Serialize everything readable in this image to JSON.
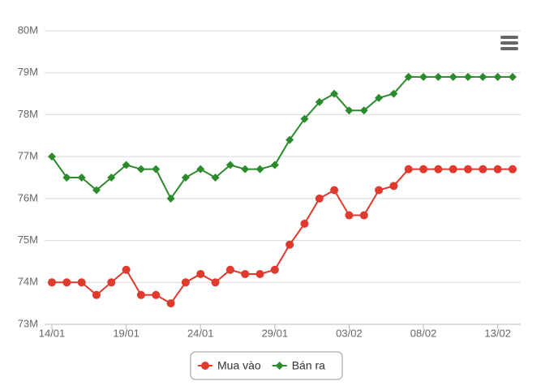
{
  "chart_data": {
    "type": "line",
    "categories": [
      "14/01",
      null,
      null,
      null,
      null,
      "19/01",
      null,
      null,
      null,
      null,
      "24/01",
      null,
      null,
      null,
      null,
      "29/01",
      null,
      null,
      null,
      null,
      "03/02",
      null,
      null,
      null,
      null,
      "08/02",
      null,
      null,
      null,
      null,
      "13/02",
      null
    ],
    "series": [
      {
        "name": "Mua vào",
        "color": "#e0392e",
        "marker": "circle",
        "values": [
          74000000,
          74000000,
          74000000,
          73700000,
          74000000,
          74300000,
          73700000,
          73700000,
          73500000,
          74000000,
          74200000,
          74000000,
          74300000,
          74200000,
          74200000,
          74300000,
          74900000,
          75400000,
          76000000,
          76200000,
          75600000,
          75600000,
          76200000,
          76300000,
          76700000,
          76700000,
          76700000,
          76700000,
          76700000,
          76700000,
          76700000,
          76700000
        ]
      },
      {
        "name": "Bán ra",
        "color": "#2b8a2b",
        "marker": "diamond",
        "values": [
          77000000,
          76500000,
          76500000,
          76200000,
          76500000,
          76800000,
          76700000,
          76700000,
          76000000,
          76500000,
          76700000,
          76500000,
          76800000,
          76700000,
          76700000,
          76800000,
          77400000,
          77900000,
          78300000,
          78500000,
          78100000,
          78100000,
          78400000,
          78500000,
          78900000,
          78900000,
          78900000,
          78900000,
          78900000,
          78900000,
          78900000,
          78900000
        ]
      }
    ],
    "ylim": [
      73000000,
      80000000
    ],
    "yticks": [
      {
        "value": 73000000,
        "label": "73M"
      },
      {
        "value": 74000000,
        "label": "74M"
      },
      {
        "value": 75000000,
        "label": "75M"
      },
      {
        "value": 76000000,
        "label": "76M"
      },
      {
        "value": 77000000,
        "label": "77M"
      },
      {
        "value": 78000000,
        "label": "78M"
      },
      {
        "value": 79000000,
        "label": "79M"
      },
      {
        "value": 80000000,
        "label": "80M"
      }
    ],
    "grid": true
  }
}
